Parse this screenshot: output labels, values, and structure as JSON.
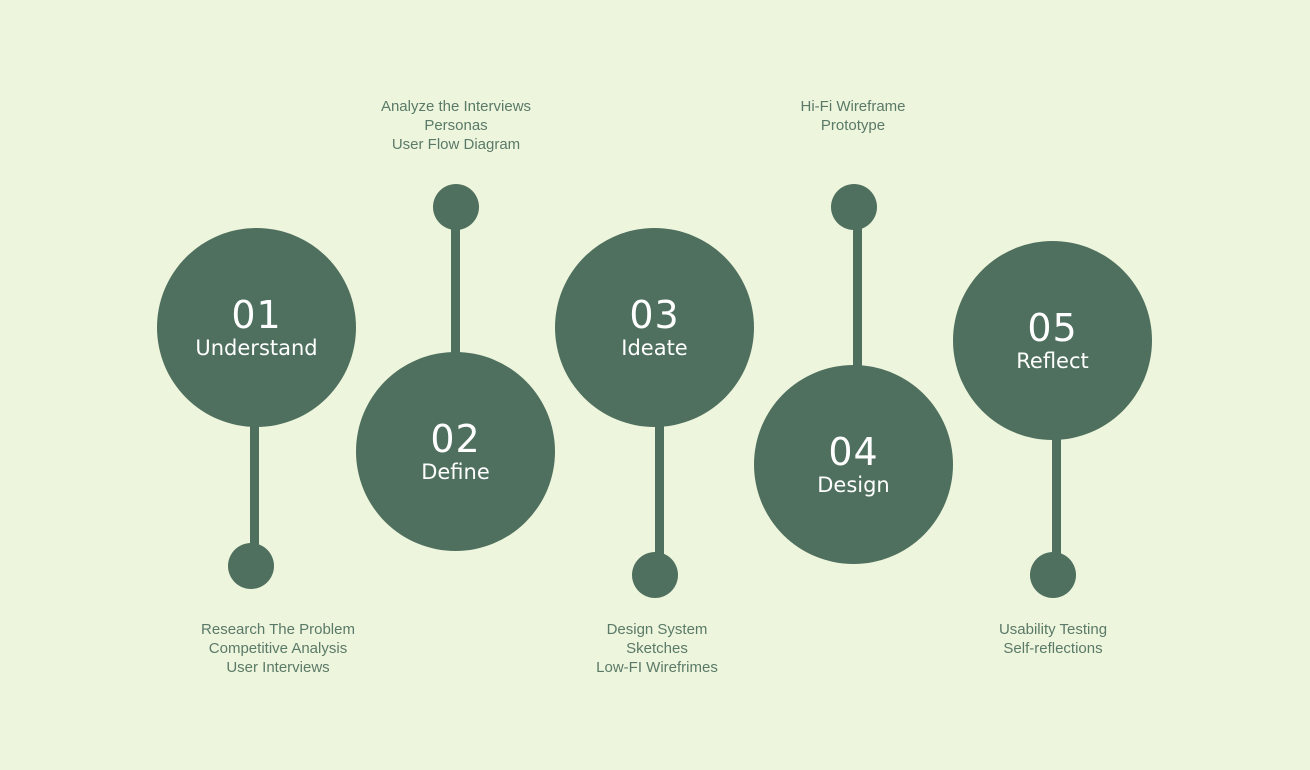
{
  "colors": {
    "background": "#eef5dd",
    "accent": "#4f705e",
    "label_text": "#5a7a68"
  },
  "steps": [
    {
      "number": "01",
      "name": "Understand",
      "details": [
        "Research The Problem",
        "Competitive Analysis",
        "User Interviews"
      ]
    },
    {
      "number": "02",
      "name": "Define",
      "details": [
        "Analyze the Interviews",
        "Personas",
        "User Flow Diagram"
      ]
    },
    {
      "number": "03",
      "name": "Ideate",
      "details": [
        "Design System",
        "Sketches",
        "Low-FI Wirefrimes"
      ]
    },
    {
      "number": "04",
      "name": "Design",
      "details": [
        "Hi-Fi Wireframe",
        "Prototype"
      ]
    },
    {
      "number": "05",
      "name": "Reflect",
      "details": [
        "Usability Testing",
        "Self-reflections"
      ]
    }
  ]
}
